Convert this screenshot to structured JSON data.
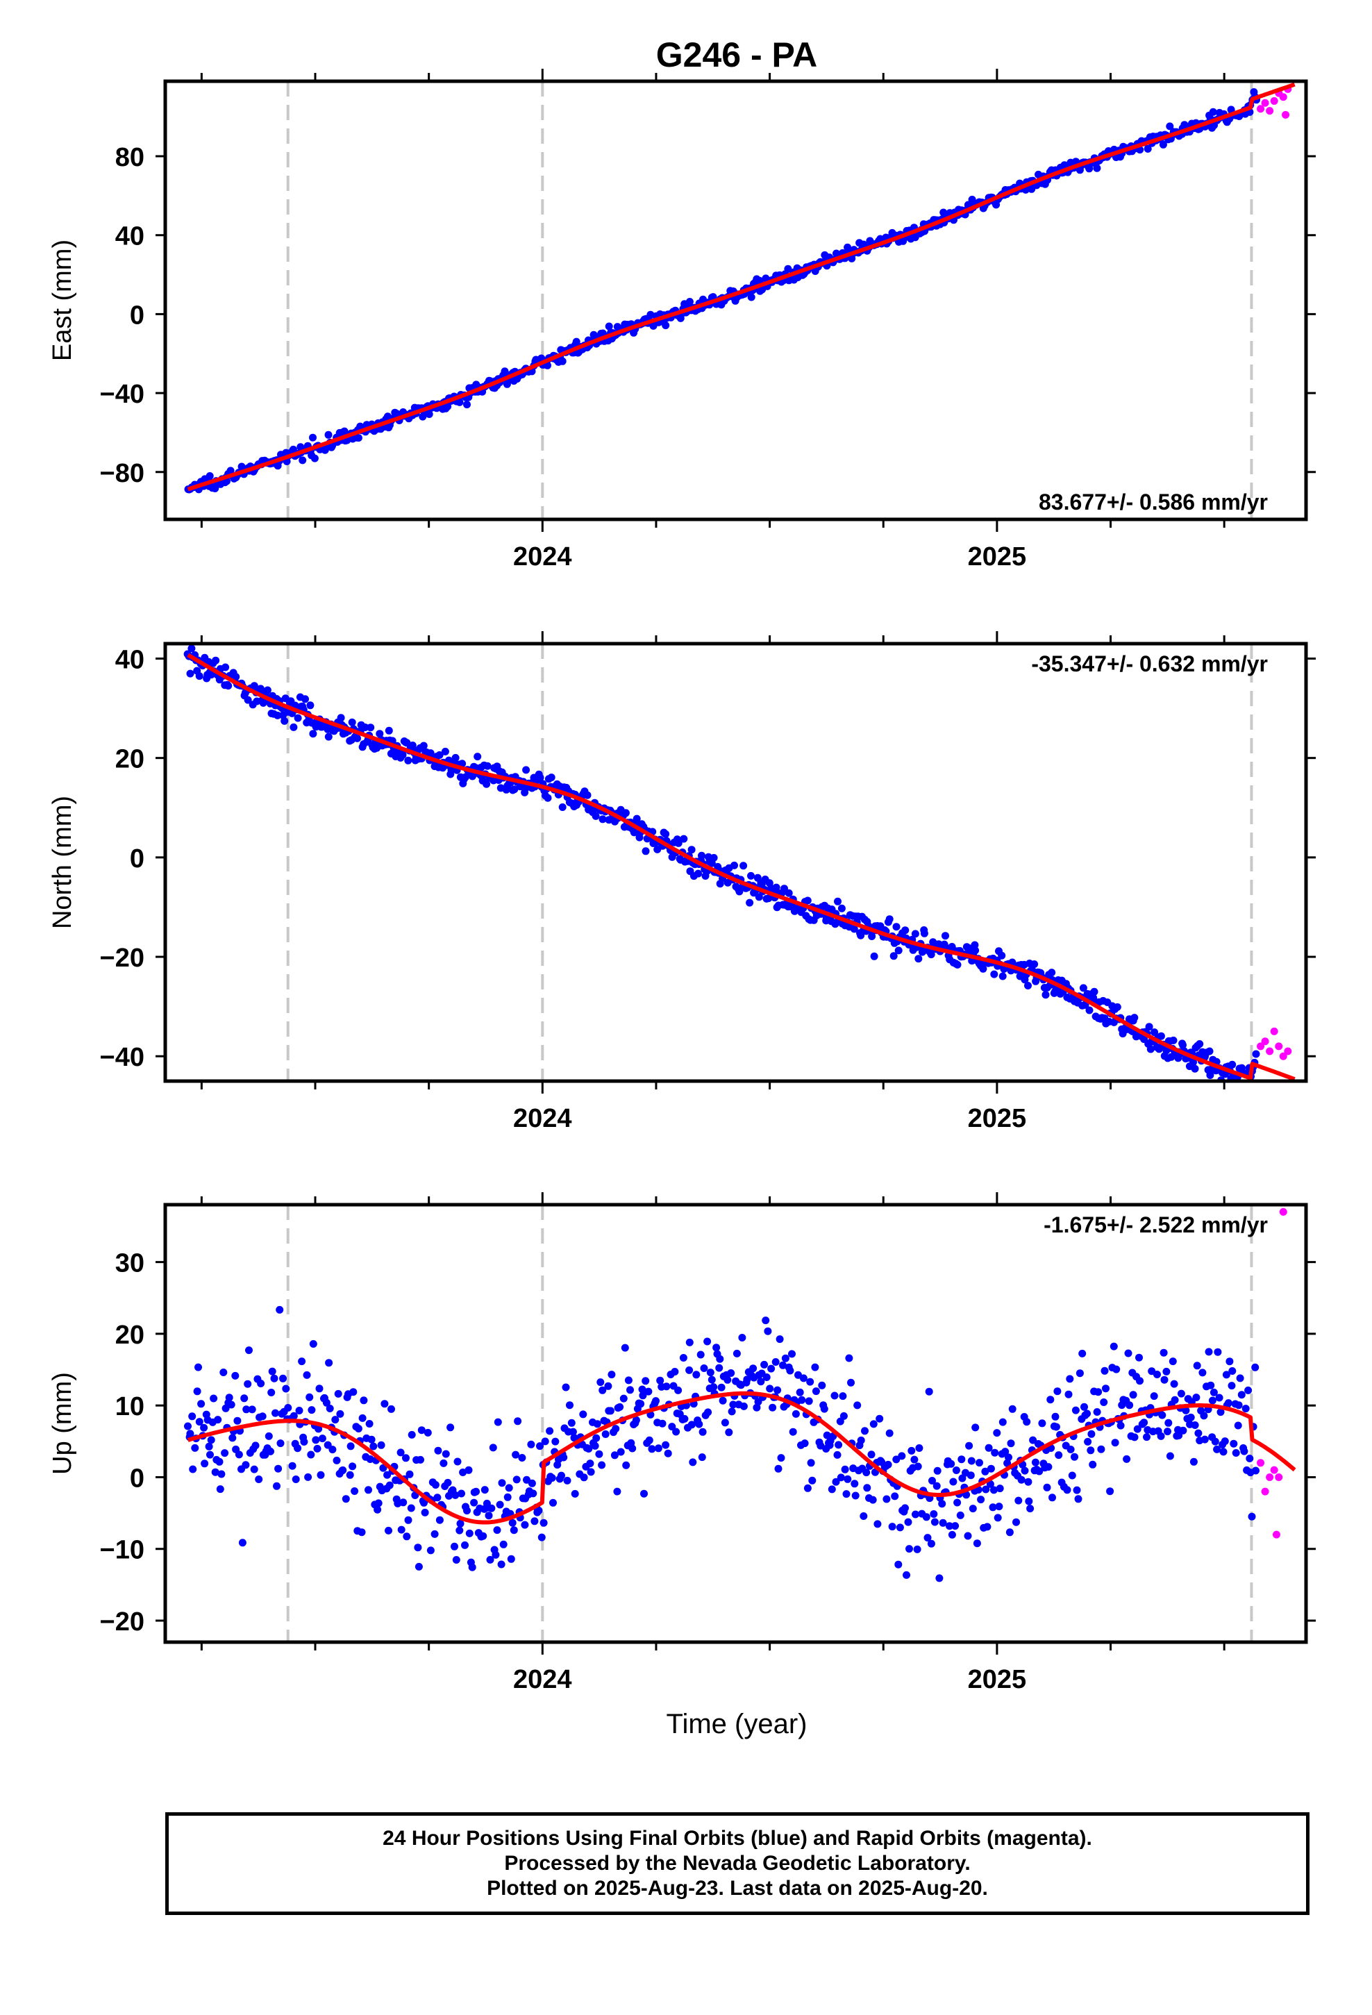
{
  "figure": {
    "title": "G246 - PA",
    "xlabel": "Time (year)",
    "footer": {
      "line1": "24 Hour Positions Using Final Orbits (blue) and Rapid Orbits (magenta).",
      "line2": "Processed by the Nevada Geodetic Laboratory.",
      "line3": "Plotted on 2025-Aug-23. Last data on 2025-Aug-20."
    }
  },
  "colors": {
    "final_orbits": "#0000ff",
    "rapid_orbits": "#ff00ff",
    "model_fit": "#ff0000",
    "dashed_lines": "#c8c8c8"
  },
  "chart_data": [
    {
      "type": "scatter",
      "ylabel": "East (mm)",
      "rate_label": "83.677+/- 0.586 mm/yr",
      "rate_position": "bottom-right",
      "xlim": [
        2023.17,
        2025.68
      ],
      "ylim": [
        -104,
        118
      ],
      "yticks": [
        -80,
        -40,
        0,
        40,
        80
      ],
      "xticks": [
        2024,
        2025
      ],
      "dashed_vertical_lines": [
        2023.44,
        2024.0,
        2025.56
      ],
      "fit": {
        "x0": 2024.3,
        "offset": 0,
        "rate": 83.677,
        "annual_amp": 1.5,
        "annual_phase": 0.35,
        "semiannual_amp": 0.5,
        "semiannual_phase": 0.1,
        "break_at": 2025.56,
        "break_offset": 4
      },
      "noise": 1.6,
      "series": [
        {
          "name": "Final Orbits",
          "x_range": [
            2023.22,
            2025.57
          ],
          "count": 820
        },
        {
          "name": "Rapid Orbits",
          "values": [
            [
              2025.58,
              104
            ],
            [
              2025.59,
              107
            ],
            [
              2025.6,
              103
            ],
            [
              2025.61,
              108
            ],
            [
              2025.62,
              112
            ],
            [
              2025.63,
              110
            ],
            [
              2025.635,
              101
            ],
            [
              2025.64,
              114
            ]
          ]
        }
      ]
    },
    {
      "type": "scatter",
      "ylabel": "North (mm)",
      "rate_label": "-35.347+/- 0.632 mm/yr",
      "rate_position": "top-right",
      "xlim": [
        2023.17,
        2025.68
      ],
      "ylim": [
        -45,
        43
      ],
      "yticks": [
        -40,
        -20,
        0,
        20,
        40
      ],
      "xticks": [
        2024,
        2025
      ],
      "dashed_vertical_lines": [
        2023.44,
        2024.0,
        2025.56
      ],
      "fit": {
        "x0": 2024.3,
        "offset": 1.5,
        "rate": -35.347,
        "annual_amp": 2.0,
        "annual_phase": 1.2,
        "semiannual_amp": 0.6,
        "semiannual_phase": 0.4,
        "break_at": 2025.56,
        "break_offset": 3
      },
      "noise": 1.3,
      "series": [
        {
          "name": "Final Orbits",
          "x_range": [
            2023.22,
            2025.57
          ],
          "count": 820
        },
        {
          "name": "Rapid Orbits",
          "values": [
            [
              2025.58,
              -38
            ],
            [
              2025.59,
              -37
            ],
            [
              2025.6,
              -39
            ],
            [
              2025.61,
              -35
            ],
            [
              2025.62,
              -38
            ],
            [
              2025.63,
              -40
            ],
            [
              2025.64,
              -39
            ]
          ]
        }
      ]
    },
    {
      "type": "scatter",
      "ylabel": "Up (mm)",
      "rate_label": "-1.675+/- 2.522 mm/yr",
      "rate_position": "top-right",
      "xlim": [
        2023.17,
        2025.68
      ],
      "ylim": [
        -23,
        38
      ],
      "yticks": [
        -20,
        -10,
        0,
        10,
        20,
        30
      ],
      "xticks": [
        2024,
        2025
      ],
      "dashed_vertical_lines": [
        2023.44,
        2024.0,
        2025.56
      ],
      "fit": {
        "x0": 2024.3,
        "offset": 0.5,
        "rate": -1.675,
        "annual_amp": 6.5,
        "annual_phase": -0.9,
        "semiannual_amp": 1.2,
        "semiannual_phase": 0.5,
        "break_at": 2024.0,
        "break_offset": 5.5,
        "break2_at": 2025.56,
        "break2_offset": -3
      },
      "noise": 4.5,
      "series": [
        {
          "name": "Final Orbits",
          "x_range": [
            2023.22,
            2025.57
          ],
          "count": 820
        },
        {
          "name": "Rapid Orbits",
          "values": [
            [
              2025.58,
              2
            ],
            [
              2025.59,
              -2
            ],
            [
              2025.6,
              0
            ],
            [
              2025.61,
              1
            ],
            [
              2025.615,
              -8
            ],
            [
              2025.62,
              0
            ],
            [
              2025.63,
              37
            ]
          ]
        }
      ]
    }
  ]
}
